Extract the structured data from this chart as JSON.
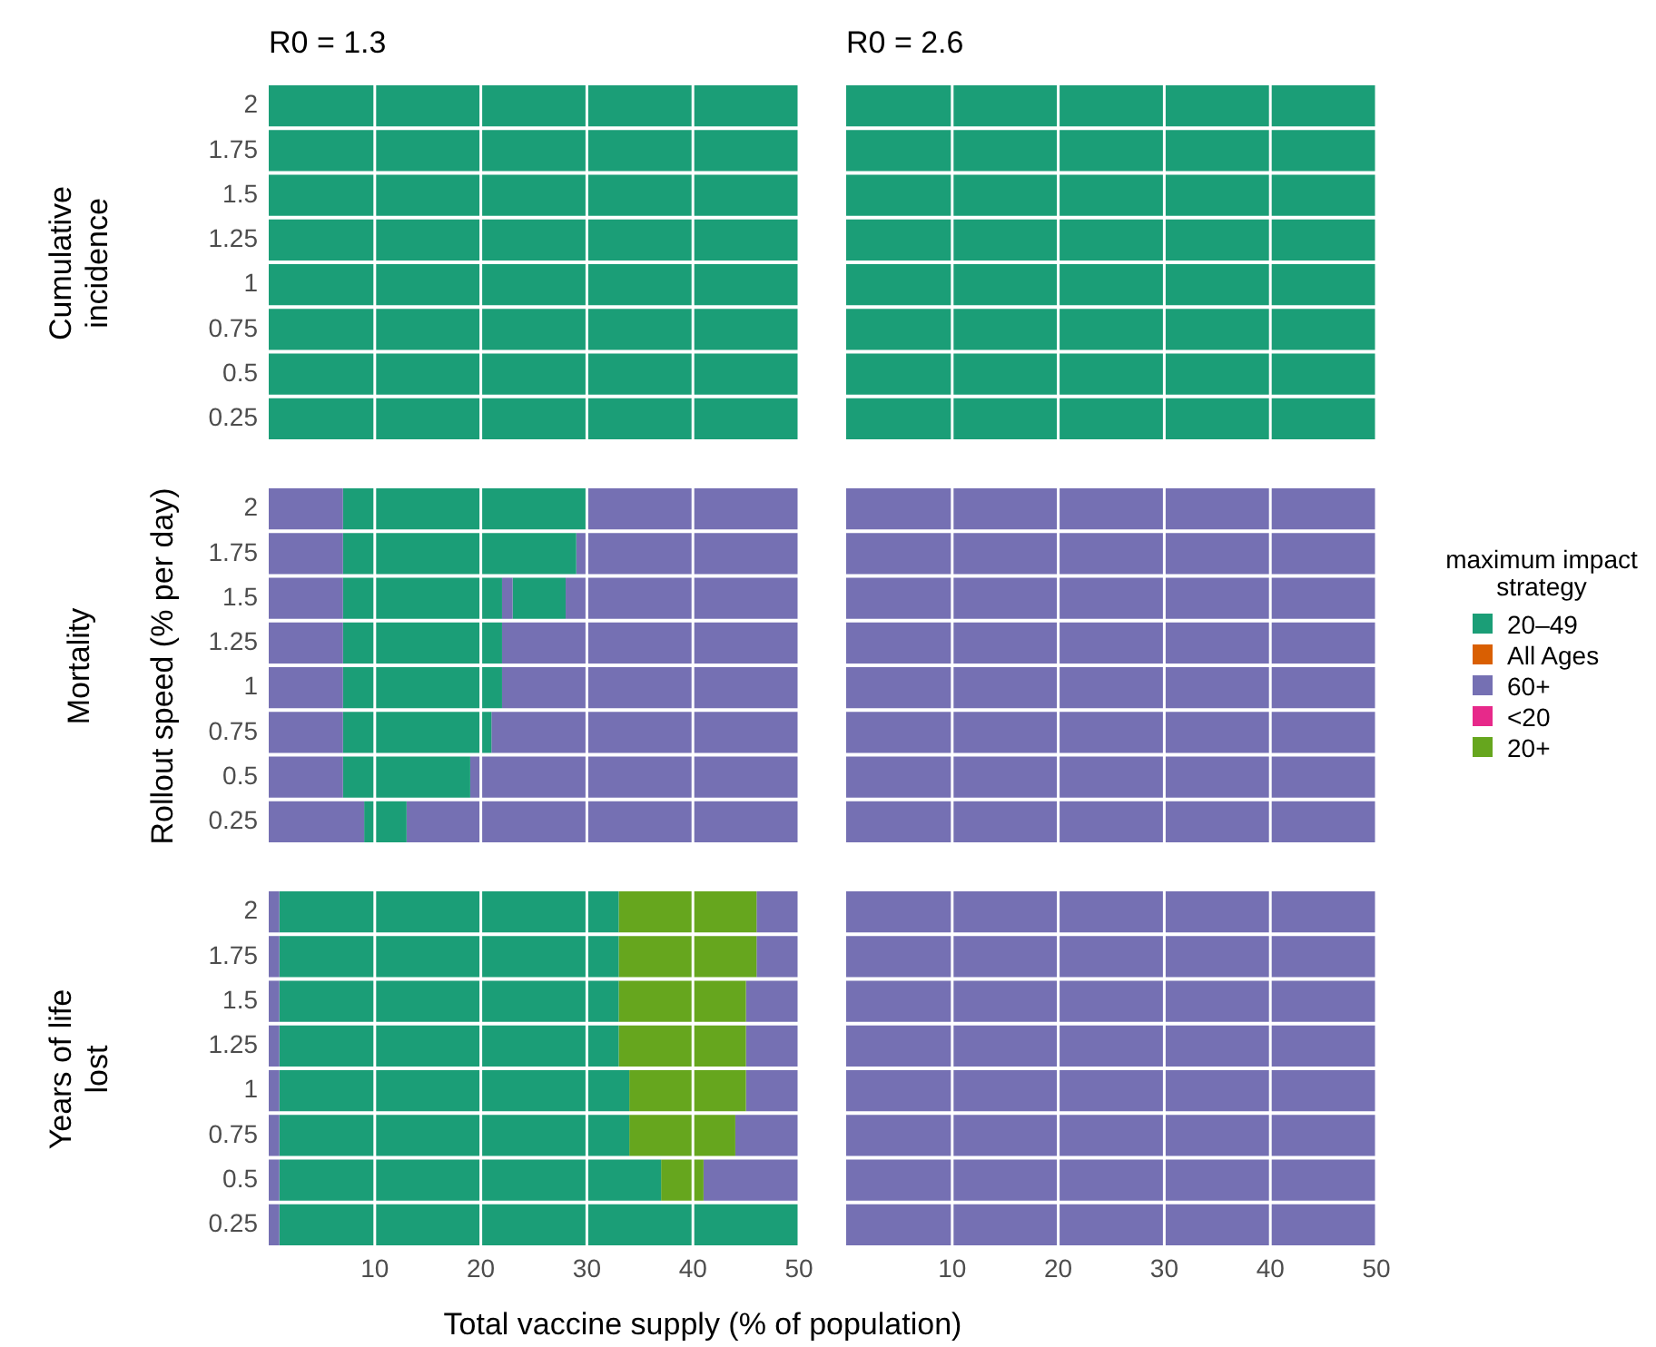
{
  "chart_data": [
    {
      "type": "bar",
      "orientation": "horizontal",
      "stacked": true,
      "title": "R0 = 1.3",
      "subtitle": "Cumulative incidence",
      "categories": [
        "2",
        "1.75",
        "1.5",
        "1.25",
        "1",
        "0.75",
        "0.5",
        "0.25"
      ],
      "xlim": [
        0,
        50
      ],
      "xticks": [
        10,
        20,
        30,
        40,
        50
      ],
      "grid": "x",
      "tick_labels": "y",
      "series": [
        {
          "color": "#1b9e77",
          "values": [
            50,
            50,
            50,
            50,
            50,
            50,
            50,
            50
          ]
        }
      ]
    },
    {
      "type": "bar",
      "orientation": "horizontal",
      "stacked": true,
      "title": "R0 = 2.6",
      "categories": [
        "2",
        "1.75",
        "1.5",
        "1.25",
        "1",
        "0.75",
        "0.5",
        "0.25"
      ],
      "xlim": [
        0,
        50
      ],
      "xticks": [
        10,
        20,
        30,
        40,
        50
      ],
      "grid": "x",
      "tick_labels": false,
      "series": [
        {
          "color": "#1b9e77",
          "values": [
            50,
            50,
            50,
            50,
            50,
            50,
            50,
            50
          ]
        }
      ]
    },
    {
      "type": "bar",
      "orientation": "horizontal",
      "stacked": true,
      "subtitle": "Mortality",
      "ylabel": "Rollout speed (% per day)",
      "categories": [
        "2",
        "1.75",
        "1.5",
        "1.25",
        "1",
        "0.75",
        "0.5",
        "0.25"
      ],
      "xlim": [
        0,
        50
      ],
      "xticks": [
        10,
        20,
        30,
        40,
        50
      ],
      "grid": "x",
      "tick_labels": "y",
      "series": [
        {
          "color": "#7570b3",
          "values": [
            7,
            7,
            7,
            7,
            7,
            7,
            7,
            9
          ]
        },
        {
          "color": "#1b9e77",
          "values": [
            23,
            22,
            15,
            15,
            15,
            14,
            12,
            4
          ]
        },
        {
          "color": "#7570b3",
          "values": [
            20,
            21,
            1,
            28,
            28,
            29,
            31,
            37
          ]
        },
        {
          "color": "#1b9e77",
          "values": [
            null,
            null,
            5,
            null,
            null,
            null,
            null,
            null
          ]
        },
        {
          "color": "#7570b3",
          "values": [
            null,
            null,
            22,
            null,
            null,
            null,
            null,
            null
          ]
        }
      ]
    },
    {
      "type": "bar",
      "orientation": "horizontal",
      "stacked": true,
      "categories": [
        "2",
        "1.75",
        "1.5",
        "1.25",
        "1",
        "0.75",
        "0.5",
        "0.25"
      ],
      "xlim": [
        0,
        50
      ],
      "xticks": [
        10,
        20,
        30,
        40,
        50
      ],
      "grid": "x",
      "tick_labels": false,
      "legend": "right",
      "legend_title": "maximum impact strategy",
      "series": [
        {
          "name": "20–49",
          "color": "#1b9e77",
          "values": [
            null,
            null,
            null,
            null,
            null,
            null,
            null,
            null
          ]
        },
        {
          "name": "All Ages",
          "color": "#d95f02",
          "values": [
            null,
            null,
            null,
            null,
            null,
            null,
            null,
            null
          ]
        },
        {
          "name": "60+",
          "color": "#7570b3",
          "values": [
            50,
            50,
            50,
            50,
            50,
            50,
            50,
            50
          ]
        },
        {
          "name": "<20",
          "color": "#e7298a",
          "values": [
            null,
            null,
            null,
            null,
            null,
            null,
            null,
            null
          ]
        },
        {
          "name": "20+",
          "color": "#66a61e",
          "values": [
            null,
            null,
            null,
            null,
            null,
            null,
            null,
            null
          ]
        }
      ]
    },
    {
      "type": "bar",
      "orientation": "horizontal",
      "stacked": true,
      "subtitle": "Years of life lost",
      "xlabel": "Total vaccine supply (% of population)",
      "categories": [
        "2",
        "1.75",
        "1.5",
        "1.25",
        "1",
        "0.75",
        "0.5",
        "0.25"
      ],
      "xlim": [
        0,
        50
      ],
      "xticks": [
        10,
        20,
        30,
        40,
        50
      ],
      "grid": "x",
      "series": [
        {
          "color": "#7570b3",
          "values": [
            1,
            1,
            1,
            1,
            1,
            1,
            1,
            1
          ]
        },
        {
          "color": "#1b9e77",
          "values": [
            32,
            32,
            32,
            32,
            33,
            33,
            36,
            49
          ]
        },
        {
          "color": "#66a61e",
          "values": [
            13,
            13,
            12,
            12,
            11,
            10,
            4,
            null
          ]
        },
        {
          "color": "#7570b3",
          "values": [
            4,
            4,
            5,
            5,
            5,
            6,
            9,
            null
          ]
        }
      ]
    },
    {
      "type": "bar",
      "orientation": "horizontal",
      "stacked": true,
      "categories": [
        "2",
        "1.75",
        "1.5",
        "1.25",
        "1",
        "0.75",
        "0.5",
        "0.25"
      ],
      "xlim": [
        0,
        50
      ],
      "xticks": [
        10,
        20,
        30,
        40,
        50
      ],
      "grid": "x",
      "tick_labels": "x",
      "series": [
        {
          "color": "#7570b3",
          "values": [
            50,
            50,
            50,
            50,
            50,
            50,
            50,
            50
          ]
        }
      ]
    }
  ]
}
